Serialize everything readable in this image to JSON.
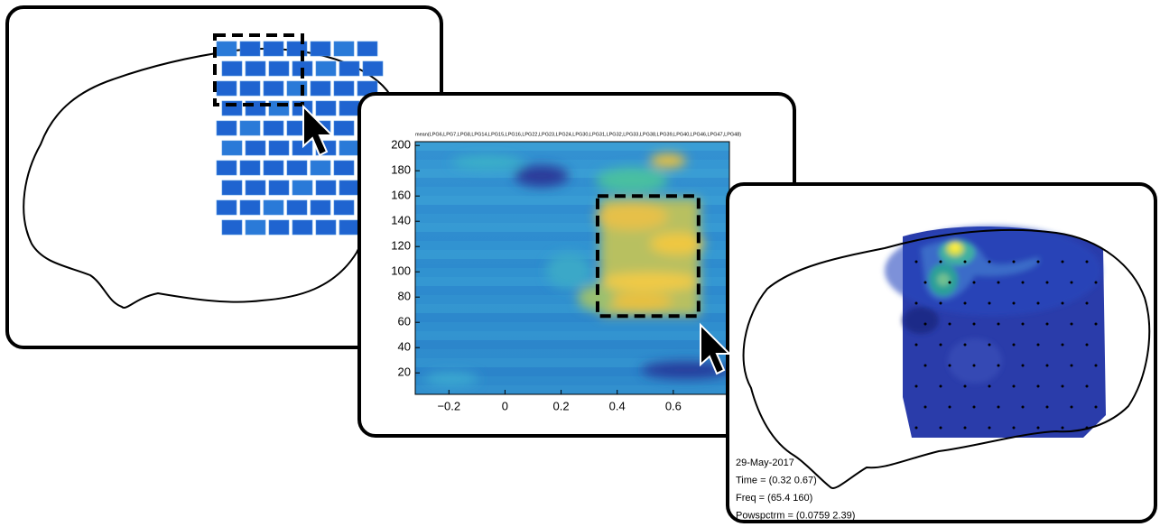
{
  "electrode_panel": {},
  "spectrogram_panel": {
    "title": "mean(LPG6,LPG7,LPG8,LPG14,LPG15,LPG16,LPG22,LPG23,LPG24,LPG30,LPG31,LPG32,LPG33,LPG38,LPG39,LPG40,LPG46,LPG47,LPG48)",
    "xlim": [
      -0.32,
      0.8
    ],
    "ylim": [
      3,
      203
    ],
    "xticks": [
      {
        "value": -0.2,
        "label": "−0.2"
      },
      0,
      0.2,
      0.4,
      0.6
    ],
    "yticks": [
      20,
      40,
      60,
      80,
      100,
      120,
      140,
      160,
      180,
      200
    ],
    "selection": {
      "x": [
        0.33,
        0.69
      ],
      "y": [
        65,
        160
      ]
    }
  },
  "topography_panel": {
    "lines": [
      "29-May-2017",
      "Time = (0.32 0.67)",
      "Freq = (65.4 160)",
      "Powspctrm = (0.0759 2.39)"
    ]
  }
}
